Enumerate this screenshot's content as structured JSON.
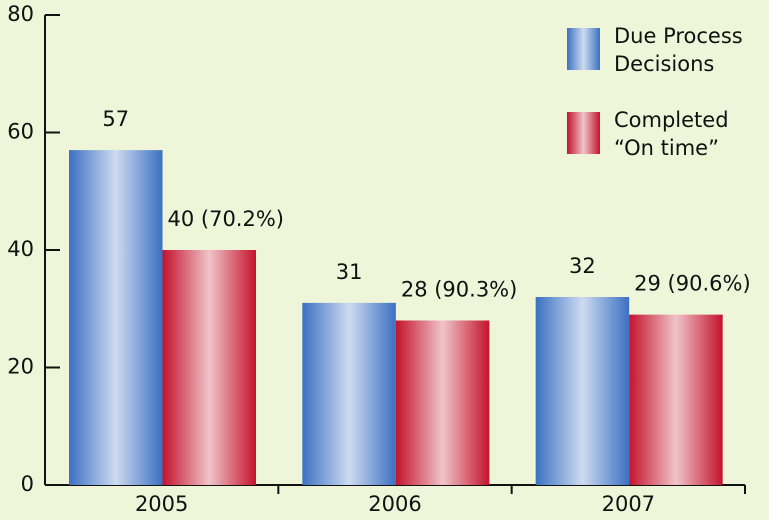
{
  "chart_data": {
    "type": "bar",
    "categories": [
      "2005",
      "2006",
      "2007"
    ],
    "series": [
      {
        "name": "Due Process Decisions",
        "color": "#3b70c2",
        "values": [
          57,
          31,
          32
        ]
      },
      {
        "name": "Completed “On time”",
        "color": "#c4122c",
        "values": [
          40,
          28,
          29
        ],
        "value_labels": [
          "40 (70.2%)",
          "28 (90.3%)",
          "29 (90.6%)"
        ]
      }
    ],
    "ylim": [
      0,
      80
    ],
    "yticks": [
      0,
      20,
      40,
      60,
      80
    ],
    "grid": false,
    "legend": "top-right"
  }
}
